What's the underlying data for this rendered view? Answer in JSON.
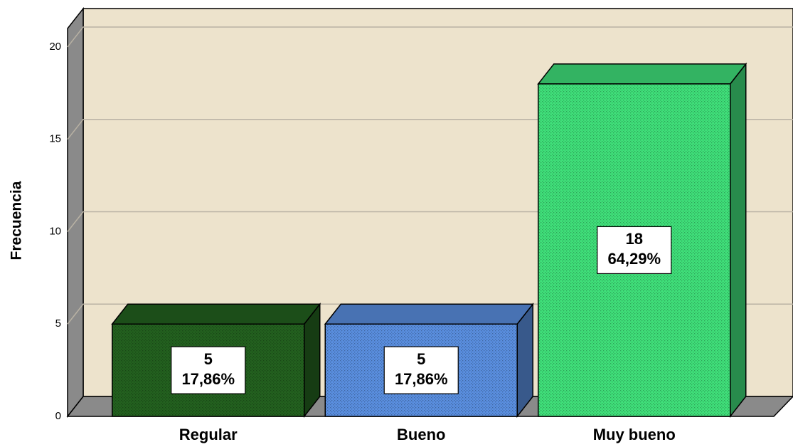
{
  "chart_data": {
    "type": "bar3d",
    "y_axis_label": "Frecuencia",
    "categories": [
      "Regular",
      "Bueno",
      "Muy bueno"
    ],
    "values": [
      5,
      5,
      18
    ],
    "percentages": [
      17.86,
      17.86,
      64.29
    ],
    "percentage_labels": [
      "17,86%",
      "17,86%",
      "64,29%"
    ],
    "colors": [
      "#23611f",
      "#5a8fe0",
      "#40e07a"
    ],
    "ylim": [
      0,
      21
    ],
    "yticks": [
      0,
      5,
      10,
      15,
      20
    ],
    "grid": true
  }
}
